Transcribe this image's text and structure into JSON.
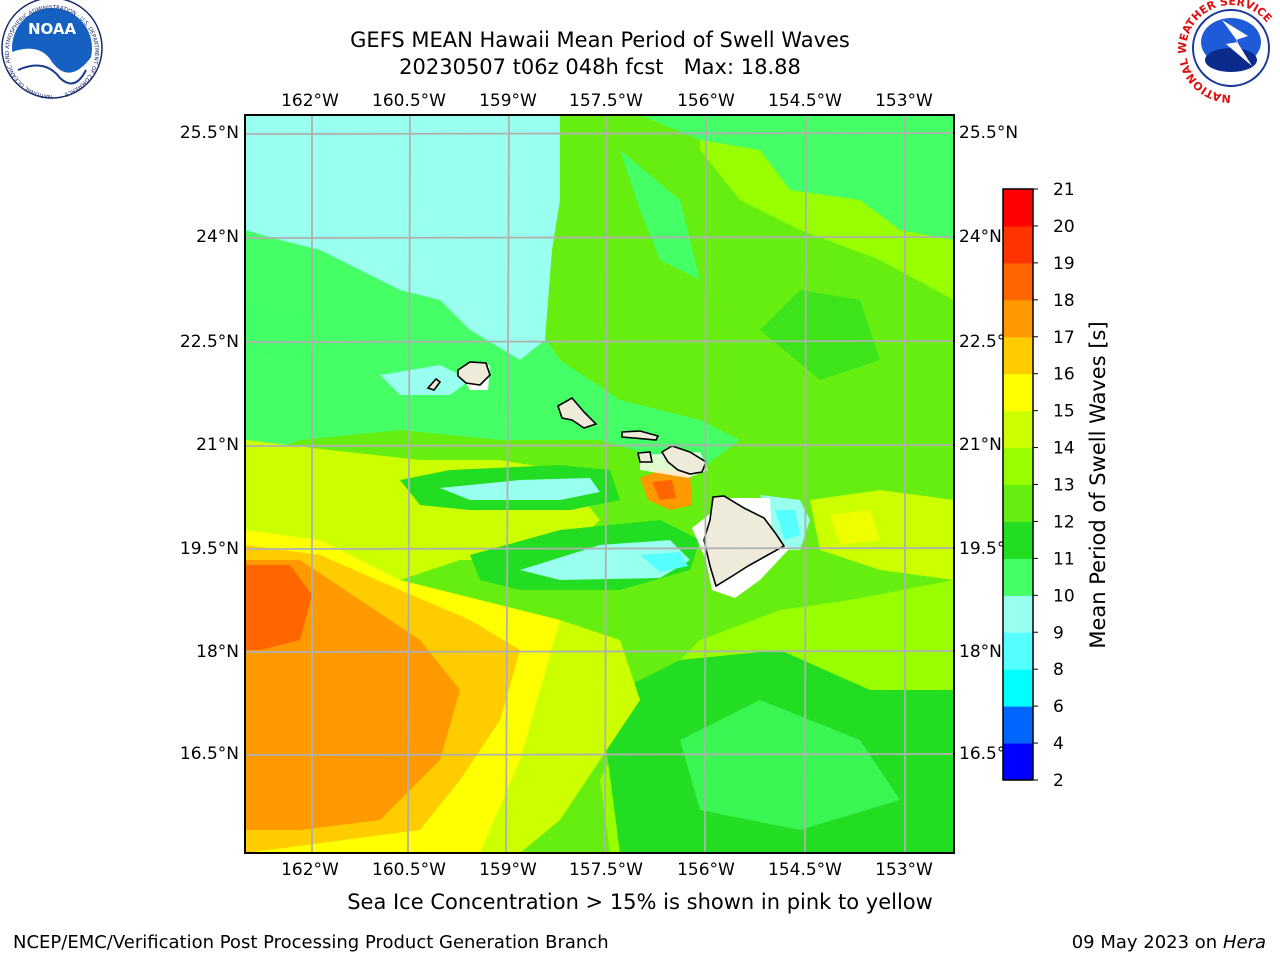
{
  "title": {
    "line1": "GEFS MEAN Hawaii Mean Period of Swell Waves",
    "line2": "20230507 t06z 048h fcst   Max: 18.88"
  },
  "subtitle": "Sea Ice Concentration > 15% is shown in pink to yellow",
  "footer": {
    "left": "NCEP/EMC/Verification Post Processing Product Generation Branch",
    "right_date": "09 May 2023 on",
    "right_host": "Hera"
  },
  "logos": {
    "noaa_text": "NOAA",
    "noaa_ring": "NATIONAL OCEANIC AND ATMOSPHERIC ADMINISTRATION · U.S. DEPARTMENT OF COMMERCE",
    "nws_ring": "NATIONAL WEATHER SERVICE"
  },
  "map": {
    "lon_labels": [
      "162°W",
      "160.5°W",
      "159°W",
      "157.5°W",
      "156°W",
      "154.5°W",
      "153°W"
    ],
    "lat_labels": [
      "25.5°N",
      "24°N",
      "22.5°N",
      "21°N",
      "19.5°N",
      "18°N",
      "16.5°N"
    ],
    "grid": true
  },
  "colorbar": {
    "label": "Mean Period of Swell Waves [s]",
    "ticks": [
      "2",
      "4",
      "6",
      "8",
      "9",
      "10",
      "11",
      "12",
      "13",
      "14",
      "15",
      "16",
      "17",
      "18",
      "19",
      "20",
      "21"
    ],
    "colors": [
      "#0000ff",
      "#0066ff",
      "#00ffff",
      "#55ffff",
      "#99ffee",
      "#44ff66",
      "#22dd22",
      "#66ee11",
      "#99ff00",
      "#ccff00",
      "#ffff00",
      "#ffcc00",
      "#ff9900",
      "#ff6600",
      "#ff3300",
      "#ff0000"
    ]
  },
  "colors": {
    "land": "#eeebdb",
    "grid": "#b0b0b0"
  }
}
